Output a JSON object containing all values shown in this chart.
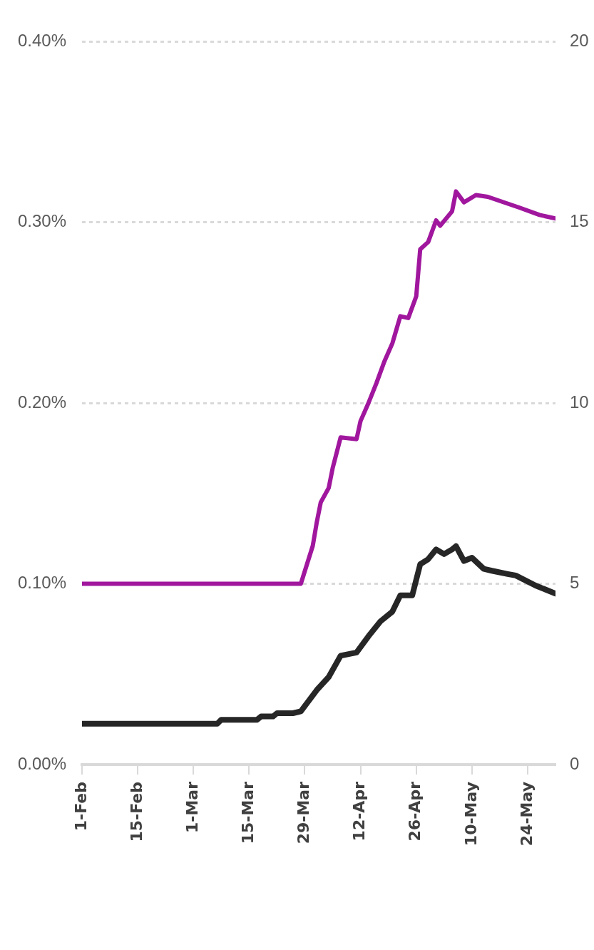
{
  "chart_data": {
    "type": "line",
    "xlim": [
      "--02-01",
      "--05-31"
    ],
    "xticks": [
      {
        "value": "--02-01",
        "label": "1-Feb"
      },
      {
        "value": "--02-15",
        "label": "15-Feb"
      },
      {
        "value": "--03-01",
        "label": "1-Mar"
      },
      {
        "value": "--03-15",
        "label": "15-Mar"
      },
      {
        "value": "--03-29",
        "label": "29-Mar"
      },
      {
        "value": "--04-12",
        "label": "12-Apr"
      },
      {
        "value": "--04-26",
        "label": "26-Apr"
      },
      {
        "value": "--05-10",
        "label": "10-May"
      },
      {
        "value": "--05-24",
        "label": "24-May"
      }
    ],
    "ylim": [
      0,
      0.4
    ],
    "yticks": [
      {
        "value": 0,
        "label": "0.00%"
      },
      {
        "value": 0.1,
        "label": "0.10%"
      },
      {
        "value": 0.2,
        "label": "0.20%"
      },
      {
        "value": 0.3,
        "label": "0.30%"
      },
      {
        "value": 0.4,
        "label": "0.40%"
      }
    ],
    "y2lim": [
      0,
      20
    ],
    "y2ticks": [
      0,
      5,
      10,
      15,
      20
    ],
    "grid": "y",
    "legend": false,
    "marker": "none",
    "line_style": "solid",
    "series": [
      {
        "color": "#a0179e",
        "x": [
          "--02-01",
          "--03-28",
          "--03-31",
          "--04-01",
          "--04-02",
          "--04-04",
          "--04-05",
          "--04-07",
          "--04-11",
          "--04-12",
          "--04-14",
          "--04-16",
          "--04-18",
          "--04-20",
          "--04-22",
          "--04-24",
          "--04-26",
          "--04-27",
          "--04-29",
          "--05-01",
          "--05-02",
          "--05-05",
          "--05-06",
          "--05-08",
          "--05-11",
          "--05-14",
          "--05-22",
          "--05-27",
          "--05-31"
        ],
        "values": [
          0.1,
          0.1,
          0.121,
          0.134,
          0.145,
          0.153,
          0.164,
          0.181,
          0.18,
          0.19,
          0.2,
          0.211,
          0.223,
          0.233,
          0.248,
          0.247,
          0.259,
          0.285,
          0.289,
          0.301,
          0.298,
          0.306,
          0.317,
          0.311,
          0.315,
          0.314,
          0.308,
          0.304,
          0.302
        ]
      },
      {
        "color": "#262626",
        "axis": "y2",
        "x": [
          "--02-01",
          "--03-07",
          "--03-08",
          "--03-17",
          "--03-18",
          "--03-21",
          "--03-22",
          "--03-26",
          "--03-28",
          "--04-01",
          "--04-04",
          "--04-07",
          "--04-11",
          "--04-14",
          "--04-17",
          "--04-20",
          "--04-22",
          "--04-25",
          "--04-27",
          "--04-29",
          "--05-01",
          "--05-03",
          "--05-05",
          "--05-06",
          "--05-08",
          "--05-10",
          "--05-13",
          "--05-15",
          "--05-19",
          "--05-21",
          "--05-26",
          "--05-31"
        ],
        "values": [
          1.13,
          1.13,
          1.24,
          1.24,
          1.33,
          1.33,
          1.42,
          1.42,
          1.47,
          2.06,
          2.42,
          3.01,
          3.1,
          3.55,
          3.96,
          4.23,
          4.68,
          4.68,
          5.54,
          5.68,
          5.95,
          5.82,
          5.95,
          6.04,
          5.63,
          5.72,
          5.41,
          5.36,
          5.27,
          5.23,
          4.95,
          4.73
        ]
      }
    ]
  }
}
